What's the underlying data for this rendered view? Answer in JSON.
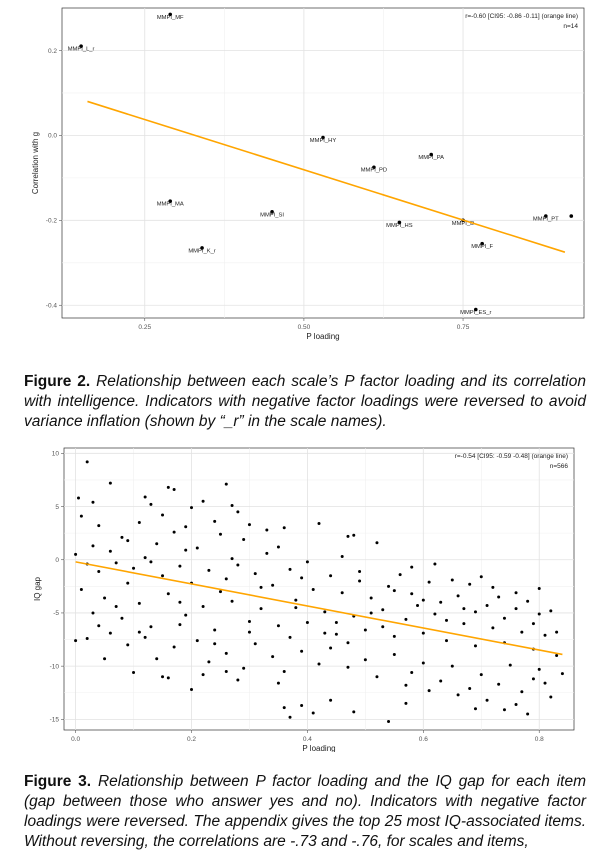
{
  "figures": [
    {
      "caption_label": "Figure 2.",
      "caption_text": "Relationship between each scale’s P factor loading and its correlation with intelligence. Indicators with negative factor loadings were reversed to avoid variance inflation (shown by “_r” in the scale names)."
    },
    {
      "caption_label": "Figure 3.",
      "caption_text": "Relationship between P factor loading and the IQ gap for each item (gap between those who answer yes and no). Indicators with negative factor loadings were reversed. The appendix gives the top 25 most IQ-associated items. Without reversing, the correlations are -.73 and -.76, for scales and items,"
    }
  ],
  "chart_data": [
    {
      "type": "scatter",
      "xlabel": "P loading",
      "ylabel": "Correlation with g",
      "xlim": [
        0.12,
        0.94
      ],
      "ylim": [
        -0.43,
        0.3
      ],
      "xticks": [
        0.25,
        0.5,
        0.75
      ],
      "xtick_labels": [
        "0.25",
        "0.50",
        "0.75"
      ],
      "yticks": [
        -0.4,
        -0.2,
        0.0,
        0.2
      ],
      "ytick_labels": [
        "-0.4",
        "-0.2",
        "0.0",
        "0.2"
      ],
      "grid": true,
      "annotation": [
        "r=-0.60 [CI95: -0.86 -0.11] (orange line)",
        "n=14"
      ],
      "line_color": "#FFA500",
      "fit_line": {
        "x": [
          0.16,
          0.91
        ],
        "y": [
          0.08,
          -0.275
        ]
      },
      "points": [
        {
          "x": 0.29,
          "y": 0.285,
          "label": "MMPI_MF"
        },
        {
          "x": 0.15,
          "y": 0.21,
          "label": "MMPI_L_r"
        },
        {
          "x": 0.53,
          "y": -0.005,
          "label": "MMPI_HY"
        },
        {
          "x": 0.7,
          "y": -0.045,
          "label": "MMPI_PA"
        },
        {
          "x": 0.61,
          "y": -0.075,
          "label": "MMPI_PD"
        },
        {
          "x": 0.29,
          "y": -0.155,
          "label": "MMPI_MA"
        },
        {
          "x": 0.45,
          "y": -0.18,
          "label": "MMPI_SI"
        },
        {
          "x": 0.65,
          "y": -0.205,
          "label": "MMPI_HS"
        },
        {
          "x": 0.75,
          "y": -0.2,
          "label": "MMPI_D"
        },
        {
          "x": 0.88,
          "y": -0.19,
          "label": "MMPI_PT"
        },
        {
          "x": 0.92,
          "y": -0.19,
          "label": ""
        },
        {
          "x": 0.78,
          "y": -0.255,
          "label": "MMPI_F"
        },
        {
          "x": 0.34,
          "y": -0.265,
          "label": "MMPI_K_r"
        },
        {
          "x": 0.77,
          "y": -0.41,
          "label": "MMPI_ES_r"
        }
      ]
    },
    {
      "type": "scatter",
      "xlabel": "P loading",
      "ylabel": "IQ gap",
      "xlim": [
        -0.02,
        0.86
      ],
      "ylim": [
        -16,
        10.5
      ],
      "xticks": [
        0.0,
        0.2,
        0.4,
        0.6,
        0.8
      ],
      "xtick_labels": [
        "0.0",
        "0.2",
        "0.4",
        "0.6",
        "0.8"
      ],
      "yticks": [
        -15,
        -10,
        -5,
        0,
        5,
        10
      ],
      "ytick_labels": [
        "-15",
        "-10",
        "-5",
        "0",
        "5",
        "10"
      ],
      "grid": true,
      "annotation": [
        "r=-0.54 [CI95: -0.59 -0.48] (orange line)",
        "n=566"
      ],
      "line_color": "#FFA500",
      "fit_line": {
        "x": [
          0.0,
          0.84
        ],
        "y": [
          -0.2,
          -8.9
        ]
      },
      "n_points": 566,
      "points": [
        [
          0.02,
          9.2
        ],
        [
          0.005,
          5.8
        ],
        [
          0.06,
          7.2
        ],
        [
          0.16,
          6.8
        ],
        [
          0.17,
          6.6
        ],
        [
          0.26,
          7.1
        ],
        [
          0.12,
          5.9
        ],
        [
          0.03,
          5.4
        ],
        [
          0.13,
          5.2
        ],
        [
          0.22,
          5.5
        ],
        [
          0.27,
          5.1
        ],
        [
          0.2,
          4.9
        ],
        [
          0.01,
          4.1
        ],
        [
          0.04,
          3.2
        ],
        [
          0.08,
          2.1
        ],
        [
          0.11,
          3.5
        ],
        [
          0.15,
          4.2
        ],
        [
          0.19,
          3.1
        ],
        [
          0.24,
          3.6
        ],
        [
          0.3,
          3.3
        ],
        [
          0.28,
          4.5
        ],
        [
          0.33,
          2.8
        ],
        [
          0.36,
          3.0
        ],
        [
          0.42,
          3.4
        ],
        [
          0.47,
          2.2
        ],
        [
          0.48,
          2.3
        ],
        [
          0.52,
          1.6
        ],
        [
          0.35,
          1.2
        ],
        [
          0.29,
          1.9
        ],
        [
          0.25,
          2.4
        ],
        [
          0.21,
          1.1
        ],
        [
          0.17,
          2.6
        ],
        [
          0.14,
          1.5
        ],
        [
          0.09,
          1.8
        ],
        [
          0.06,
          0.8
        ],
        [
          0.03,
          1.3
        ],
        [
          0.0,
          0.5
        ],
        [
          0.02,
          -0.4
        ],
        [
          0.04,
          -1.1
        ],
        [
          0.07,
          -0.3
        ],
        [
          0.1,
          -0.8
        ],
        [
          0.12,
          0.2
        ],
        [
          0.15,
          -1.5
        ],
        [
          0.18,
          -0.6
        ],
        [
          0.2,
          -2.2
        ],
        [
          0.23,
          -1.0
        ],
        [
          0.26,
          -1.8
        ],
        [
          0.28,
          -0.5
        ],
        [
          0.31,
          -1.3
        ],
        [
          0.34,
          -2.4
        ],
        [
          0.37,
          -0.9
        ],
        [
          0.39,
          -1.7
        ],
        [
          0.41,
          -2.8
        ],
        [
          0.44,
          -1.5
        ],
        [
          0.46,
          -3.1
        ],
        [
          0.49,
          -2.0
        ],
        [
          0.51,
          -3.6
        ],
        [
          0.54,
          -2.5
        ],
        [
          0.56,
          -1.4
        ],
        [
          0.58,
          -3.2
        ],
        [
          0.61,
          -2.1
        ],
        [
          0.63,
          -4.0
        ],
        [
          0.66,
          -3.4
        ],
        [
          0.68,
          -2.3
        ],
        [
          0.71,
          -4.3
        ],
        [
          0.73,
          -3.5
        ],
        [
          0.76,
          -4.6
        ],
        [
          0.78,
          -3.9
        ],
        [
          0.8,
          -2.7
        ],
        [
          0.82,
          -4.8
        ],
        [
          0.65,
          -1.9
        ],
        [
          0.7,
          -1.6
        ],
        [
          0.01,
          -2.8
        ],
        [
          0.03,
          -5.0
        ],
        [
          0.05,
          -3.6
        ],
        [
          0.08,
          -5.5
        ],
        [
          0.11,
          -4.1
        ],
        [
          0.13,
          -6.3
        ],
        [
          0.16,
          -3.2
        ],
        [
          0.19,
          -5.2
        ],
        [
          0.22,
          -4.4
        ],
        [
          0.24,
          -6.6
        ],
        [
          0.27,
          -3.9
        ],
        [
          0.3,
          -5.8
        ],
        [
          0.32,
          -4.6
        ],
        [
          0.35,
          -6.2
        ],
        [
          0.38,
          -3.8
        ],
        [
          0.4,
          -5.9
        ],
        [
          0.43,
          -4.9
        ],
        [
          0.45,
          -7.0
        ],
        [
          0.48,
          -5.3
        ],
        [
          0.5,
          -6.6
        ],
        [
          0.53,
          -4.7
        ],
        [
          0.55,
          -7.2
        ],
        [
          0.57,
          -5.6
        ],
        [
          0.6,
          -6.9
        ],
        [
          0.62,
          -5.1
        ],
        [
          0.64,
          -7.6
        ],
        [
          0.67,
          -6.0
        ],
        [
          0.69,
          -8.1
        ],
        [
          0.72,
          -6.4
        ],
        [
          0.74,
          -7.8
        ],
        [
          0.77,
          -6.8
        ],
        [
          0.79,
          -8.4
        ],
        [
          0.81,
          -7.1
        ],
        [
          0.83,
          -9.0
        ],
        [
          0.84,
          -10.7
        ],
        [
          0.8,
          -10.3
        ],
        [
          0.02,
          -7.4
        ],
        [
          0.06,
          -6.9
        ],
        [
          0.09,
          -8.0
        ],
        [
          0.12,
          -7.3
        ],
        [
          0.14,
          -9.3
        ],
        [
          0.17,
          -8.2
        ],
        [
          0.21,
          -7.6
        ],
        [
          0.23,
          -9.6
        ],
        [
          0.26,
          -8.8
        ],
        [
          0.29,
          -10.2
        ],
        [
          0.31,
          -7.9
        ],
        [
          0.34,
          -9.1
        ],
        [
          0.36,
          -10.5
        ],
        [
          0.39,
          -8.6
        ],
        [
          0.42,
          -9.8
        ],
        [
          0.44,
          -8.3
        ],
        [
          0.47,
          -10.1
        ],
        [
          0.5,
          -9.4
        ],
        [
          0.52,
          -11.0
        ],
        [
          0.55,
          -8.9
        ],
        [
          0.58,
          -10.6
        ],
        [
          0.6,
          -9.7
        ],
        [
          0.63,
          -11.4
        ],
        [
          0.65,
          -10.0
        ],
        [
          0.68,
          -12.1
        ],
        [
          0.7,
          -10.8
        ],
        [
          0.73,
          -11.7
        ],
        [
          0.75,
          -9.9
        ],
        [
          0.77,
          -12.4
        ],
        [
          0.79,
          -11.2
        ],
        [
          0.82,
          -12.9
        ],
        [
          0.66,
          -12.7
        ],
        [
          0.61,
          -12.3
        ],
        [
          0.57,
          -11.8
        ],
        [
          0.71,
          -13.2
        ],
        [
          0.76,
          -13.6
        ],
        [
          0.39,
          -13.7
        ],
        [
          0.41,
          -14.4
        ],
        [
          0.44,
          -13.2
        ],
        [
          0.37,
          -14.8
        ],
        [
          0.54,
          -15.2
        ],
        [
          0.78,
          -14.5
        ],
        [
          0.74,
          -14.1
        ],
        [
          0.48,
          -14.3
        ],
        [
          0.36,
          -13.9
        ],
        [
          0.81,
          -11.6
        ],
        [
          0.26,
          -10.5
        ],
        [
          0.2,
          -12.2
        ],
        [
          0.15,
          -11.0
        ],
        [
          0.16,
          -11.1
        ],
        [
          0.1,
          -10.6
        ],
        [
          0.05,
          -9.3
        ],
        [
          0.0,
          -7.6
        ],
        [
          0.07,
          -4.4
        ],
        [
          0.09,
          -2.2
        ],
        [
          0.18,
          -4.0
        ],
        [
          0.25,
          -3.0
        ],
        [
          0.32,
          -2.6
        ],
        [
          0.38,
          -4.5
        ],
        [
          0.45,
          -5.9
        ],
        [
          0.51,
          -5.0
        ],
        [
          0.59,
          -4.3
        ],
        [
          0.64,
          -5.7
        ],
        [
          0.69,
          -4.9
        ],
        [
          0.74,
          -5.5
        ],
        [
          0.79,
          -6.0
        ],
        [
          0.83,
          -6.8
        ],
        [
          0.58,
          -0.7
        ],
        [
          0.62,
          -0.4
        ],
        [
          0.46,
          0.3
        ],
        [
          0.4,
          -0.2
        ],
        [
          0.33,
          0.6
        ],
        [
          0.27,
          0.1
        ],
        [
          0.19,
          0.9
        ],
        [
          0.13,
          -0.2
        ],
        [
          0.49,
          -1.1
        ],
        [
          0.55,
          -2.9
        ],
        [
          0.6,
          -3.8
        ],
        [
          0.67,
          -4.6
        ],
        [
          0.72,
          -2.6
        ],
        [
          0.76,
          -3.1
        ],
        [
          0.8,
          -5.1
        ],
        [
          0.53,
          -6.3
        ],
        [
          0.47,
          -7.8
        ],
        [
          0.43,
          -6.9
        ],
        [
          0.37,
          -7.3
        ],
        [
          0.3,
          -6.8
        ],
        [
          0.24,
          -7.9
        ],
        [
          0.18,
          -6.1
        ],
        [
          0.11,
          -6.8
        ],
        [
          0.04,
          -6.2
        ],
        [
          0.35,
          -11.6
        ],
        [
          0.28,
          -11.3
        ],
        [
          0.22,
          -10.8
        ],
        [
          0.57,
          -13.5
        ],
        [
          0.69,
          -14.0
        ]
      ]
    }
  ]
}
